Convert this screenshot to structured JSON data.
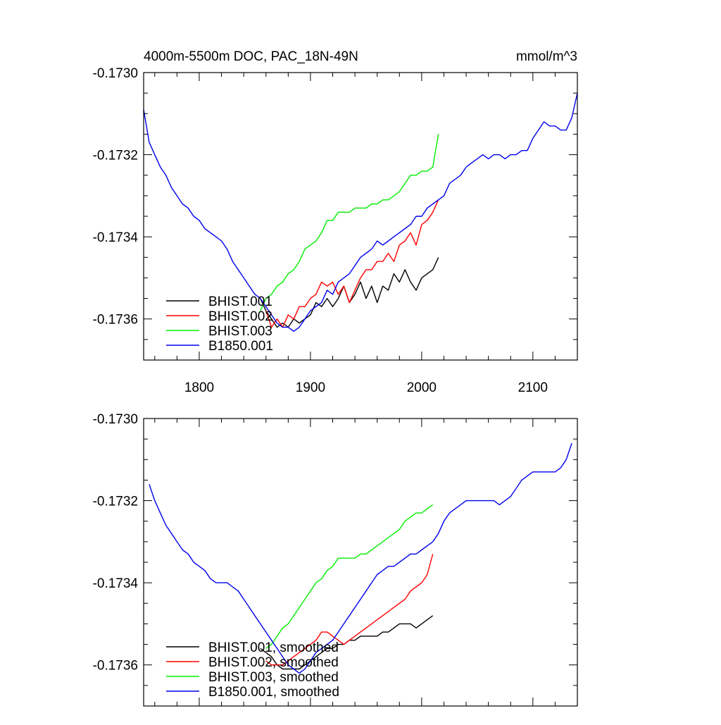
{
  "chart_data": [
    {
      "type": "line",
      "title": "4000m-5500m DOC, PAC_18N-49N",
      "units": "mmol/m^3",
      "xlim": [
        1750,
        2140
      ],
      "ylim": [
        -0.1737,
        -0.173
      ],
      "x_ticks": [
        1800,
        1900,
        2000,
        2100
      ],
      "x_tick_labels": [
        "1800",
        "1900",
        "2000",
        "2100"
      ],
      "y_ticks": [
        -0.173,
        -0.1732,
        -0.1734,
        -0.1736
      ],
      "y_tick_labels": [
        "-0.1730",
        "-0.1732",
        "-0.1734",
        "-0.1736"
      ],
      "legend_position": "bottom-left",
      "series": [
        {
          "name": "BHIST.001",
          "color": "#000000",
          "x": [
            1855,
            1860,
            1865,
            1870,
            1875,
            1880,
            1885,
            1890,
            1895,
            1900,
            1905,
            1910,
            1915,
            1920,
            1925,
            1930,
            1935,
            1940,
            1945,
            1950,
            1955,
            1960,
            1965,
            1970,
            1975,
            1980,
            1985,
            1990,
            1995,
            2000,
            2005,
            2010,
            2015
          ],
          "y": [
            -0.17355,
            -0.17358,
            -0.1736,
            -0.17362,
            -0.17361,
            -0.17362,
            -0.1736,
            -0.17361,
            -0.1736,
            -0.17359,
            -0.17356,
            -0.17357,
            -0.17355,
            -0.17357,
            -0.17355,
            -0.17352,
            -0.17356,
            -0.17354,
            -0.17351,
            -0.17355,
            -0.17352,
            -0.17356,
            -0.17352,
            -0.17353,
            -0.17349,
            -0.17351,
            -0.17348,
            -0.17351,
            -0.17353,
            -0.1735,
            -0.17349,
            -0.17348,
            -0.17345
          ]
        },
        {
          "name": "BHIST.002",
          "color": "#ff0000",
          "x": [
            1860,
            1865,
            1870,
            1875,
            1880,
            1885,
            1890,
            1895,
            1900,
            1905,
            1910,
            1915,
            1920,
            1925,
            1930,
            1935,
            1940,
            1945,
            1950,
            1955,
            1960,
            1965,
            1970,
            1975,
            1980,
            1985,
            1990,
            1995,
            2000,
            2005,
            2010,
            2015
          ],
          "y": [
            -0.17358,
            -0.17362,
            -0.1736,
            -0.17362,
            -0.17359,
            -0.1736,
            -0.17357,
            -0.17357,
            -0.17355,
            -0.17354,
            -0.17351,
            -0.17352,
            -0.17351,
            -0.17354,
            -0.17352,
            -0.17356,
            -0.17353,
            -0.1735,
            -0.17348,
            -0.17348,
            -0.17346,
            -0.17346,
            -0.17344,
            -0.17346,
            -0.17342,
            -0.17341,
            -0.17339,
            -0.17342,
            -0.17337,
            -0.17336,
            -0.17334,
            -0.17331
          ]
        },
        {
          "name": "BHIST.003",
          "color": "#00ee00",
          "x": [
            1855,
            1860,
            1865,
            1870,
            1875,
            1880,
            1885,
            1890,
            1895,
            1900,
            1905,
            1910,
            1915,
            1920,
            1925,
            1930,
            1935,
            1940,
            1945,
            1950,
            1955,
            1960,
            1965,
            1970,
            1975,
            1980,
            1985,
            1990,
            1995,
            2000,
            2005,
            2010,
            2015
          ],
          "y": [
            -0.17358,
            -0.17355,
            -0.17354,
            -0.17352,
            -0.17351,
            -0.17349,
            -0.17348,
            -0.17346,
            -0.17343,
            -0.17342,
            -0.17341,
            -0.17339,
            -0.17336,
            -0.17336,
            -0.17334,
            -0.17334,
            -0.17334,
            -0.17333,
            -0.17333,
            -0.17333,
            -0.17332,
            -0.17332,
            -0.17331,
            -0.17331,
            -0.1733,
            -0.17329,
            -0.17327,
            -0.17325,
            -0.17325,
            -0.17324,
            -0.17324,
            -0.17323,
            -0.17315
          ]
        },
        {
          "name": "B1850.001",
          "color": "#0000ee",
          "x": [
            1750,
            1755,
            1760,
            1765,
            1770,
            1775,
            1780,
            1785,
            1790,
            1795,
            1800,
            1805,
            1810,
            1815,
            1820,
            1825,
            1830,
            1835,
            1840,
            1845,
            1850,
            1855,
            1860,
            1865,
            1870,
            1875,
            1880,
            1885,
            1890,
            1895,
            1900,
            1905,
            1910,
            1915,
            1920,
            1925,
            1930,
            1935,
            1940,
            1945,
            1950,
            1955,
            1960,
            1965,
            1970,
            1975,
            1980,
            1985,
            1990,
            1995,
            2000,
            2005,
            2010,
            2015,
            2020,
            2025,
            2030,
            2035,
            2040,
            2045,
            2050,
            2055,
            2060,
            2065,
            2070,
            2075,
            2080,
            2085,
            2090,
            2095,
            2100,
            2105,
            2110,
            2115,
            2120,
            2125,
            2130,
            2135,
            2140
          ],
          "y": [
            -0.17309,
            -0.17317,
            -0.1732,
            -0.17323,
            -0.17325,
            -0.17328,
            -0.1733,
            -0.17332,
            -0.17333,
            -0.17335,
            -0.17336,
            -0.17338,
            -0.17339,
            -0.1734,
            -0.17341,
            -0.17343,
            -0.17346,
            -0.17348,
            -0.1735,
            -0.17352,
            -0.17354,
            -0.17355,
            -0.17357,
            -0.17359,
            -0.17361,
            -0.17362,
            -0.17362,
            -0.17363,
            -0.17362,
            -0.1736,
            -0.17358,
            -0.17357,
            -0.17356,
            -0.17353,
            -0.17354,
            -0.17351,
            -0.1735,
            -0.17349,
            -0.17347,
            -0.17345,
            -0.17344,
            -0.17343,
            -0.17341,
            -0.17342,
            -0.17341,
            -0.1734,
            -0.17339,
            -0.17338,
            -0.17337,
            -0.17335,
            -0.17335,
            -0.17333,
            -0.17332,
            -0.17331,
            -0.1733,
            -0.17327,
            -0.17326,
            -0.17325,
            -0.17323,
            -0.17322,
            -0.17321,
            -0.1732,
            -0.17321,
            -0.1732,
            -0.1732,
            -0.17321,
            -0.1732,
            -0.1732,
            -0.17319,
            -0.17319,
            -0.17316,
            -0.17314,
            -0.17312,
            -0.17313,
            -0.17313,
            -0.17314,
            -0.17314,
            -0.17311,
            -0.17305
          ]
        }
      ]
    },
    {
      "type": "line",
      "xlim": [
        1750,
        2140
      ],
      "ylim": [
        -0.1737,
        -0.173
      ],
      "x_ticks": [
        1800,
        1900,
        2000,
        2100
      ],
      "y_ticks": [
        -0.173,
        -0.1732,
        -0.1734,
        -0.1736
      ],
      "y_tick_labels": [
        "-0.1730",
        "-0.1732",
        "-0.1734",
        "-0.1736"
      ],
      "legend_position": "bottom-left",
      "series": [
        {
          "name": "BHIST.001, smoothed",
          "color": "#000000",
          "x": [
            1855,
            1860,
            1865,
            1870,
            1875,
            1880,
            1885,
            1890,
            1895,
            1900,
            1905,
            1910,
            1915,
            1920,
            1925,
            1930,
            1935,
            1940,
            1945,
            1950,
            1955,
            1960,
            1965,
            1970,
            1975,
            1980,
            1985,
            1990,
            1995,
            2000,
            2005,
            2010
          ],
          "y": [
            -0.17356,
            -0.17357,
            -0.17358,
            -0.1736,
            -0.17361,
            -0.17361,
            -0.17361,
            -0.17361,
            -0.1736,
            -0.17359,
            -0.17358,
            -0.17357,
            -0.17356,
            -0.17356,
            -0.17355,
            -0.17355,
            -0.17354,
            -0.17354,
            -0.17353,
            -0.17353,
            -0.17353,
            -0.17353,
            -0.17352,
            -0.17352,
            -0.17351,
            -0.1735,
            -0.1735,
            -0.1735,
            -0.17351,
            -0.1735,
            -0.17349,
            -0.17348
          ]
        },
        {
          "name": "BHIST.002, smoothed",
          "color": "#ff0000",
          "x": [
            1860,
            1865,
            1870,
            1875,
            1880,
            1885,
            1890,
            1895,
            1900,
            1905,
            1910,
            1915,
            1920,
            1925,
            1930,
            1935,
            1940,
            1945,
            1950,
            1955,
            1960,
            1965,
            1970,
            1975,
            1980,
            1985,
            1990,
            1995,
            2000,
            2005,
            2010
          ],
          "y": [
            -0.17359,
            -0.1736,
            -0.1736,
            -0.1736,
            -0.17359,
            -0.17358,
            -0.17357,
            -0.17356,
            -0.17355,
            -0.17354,
            -0.17352,
            -0.17352,
            -0.17353,
            -0.17354,
            -0.17355,
            -0.17354,
            -0.17353,
            -0.17352,
            -0.17351,
            -0.1735,
            -0.17349,
            -0.17348,
            -0.17347,
            -0.17346,
            -0.17345,
            -0.17344,
            -0.17342,
            -0.17341,
            -0.1734,
            -0.17338,
            -0.17333
          ]
        },
        {
          "name": "BHIST.003, smoothed",
          "color": "#00ee00",
          "x": [
            1860,
            1865,
            1870,
            1875,
            1880,
            1885,
            1890,
            1895,
            1900,
            1905,
            1910,
            1915,
            1920,
            1925,
            1930,
            1935,
            1940,
            1945,
            1950,
            1955,
            1960,
            1965,
            1970,
            1975,
            1980,
            1985,
            1990,
            1995,
            2000,
            2005,
            2010
          ],
          "y": [
            -0.17356,
            -0.17355,
            -0.17353,
            -0.17351,
            -0.1735,
            -0.17348,
            -0.17346,
            -0.17344,
            -0.17342,
            -0.1734,
            -0.17339,
            -0.17337,
            -0.17336,
            -0.17334,
            -0.17334,
            -0.17334,
            -0.17334,
            -0.17333,
            -0.17333,
            -0.17332,
            -0.17331,
            -0.1733,
            -0.17329,
            -0.17328,
            -0.17327,
            -0.17325,
            -0.17324,
            -0.17323,
            -0.17323,
            -0.17322,
            -0.17321
          ]
        },
        {
          "name": "B1850.001, smoothed",
          "color": "#0000ee",
          "x": [
            1755,
            1760,
            1765,
            1770,
            1775,
            1780,
            1785,
            1790,
            1795,
            1800,
            1805,
            1810,
            1815,
            1820,
            1825,
            1830,
            1835,
            1840,
            1845,
            1850,
            1855,
            1860,
            1865,
            1870,
            1875,
            1880,
            1885,
            1890,
            1895,
            1900,
            1905,
            1910,
            1915,
            1920,
            1925,
            1930,
            1935,
            1940,
            1945,
            1950,
            1955,
            1960,
            1965,
            1970,
            1975,
            1980,
            1985,
            1990,
            1995,
            2000,
            2005,
            2010,
            2015,
            2020,
            2025,
            2030,
            2035,
            2040,
            2045,
            2050,
            2055,
            2060,
            2065,
            2070,
            2075,
            2080,
            2085,
            2090,
            2095,
            2100,
            2105,
            2110,
            2115,
            2120,
            2125,
            2130,
            2135
          ],
          "y": [
            -0.17316,
            -0.1732,
            -0.17323,
            -0.17326,
            -0.17328,
            -0.1733,
            -0.17332,
            -0.17333,
            -0.17335,
            -0.17336,
            -0.17337,
            -0.17339,
            -0.1734,
            -0.1734,
            -0.1734,
            -0.17341,
            -0.17342,
            -0.17344,
            -0.17346,
            -0.17348,
            -0.1735,
            -0.17352,
            -0.17354,
            -0.17356,
            -0.17358,
            -0.1736,
            -0.17361,
            -0.17362,
            -0.17361,
            -0.17359,
            -0.17357,
            -0.17356,
            -0.17355,
            -0.17354,
            -0.17352,
            -0.1735,
            -0.17348,
            -0.17346,
            -0.17344,
            -0.17342,
            -0.1734,
            -0.17338,
            -0.17337,
            -0.17336,
            -0.17336,
            -0.17335,
            -0.17334,
            -0.17333,
            -0.17333,
            -0.17332,
            -0.17331,
            -0.1733,
            -0.17328,
            -0.17325,
            -0.17323,
            -0.17322,
            -0.17321,
            -0.1732,
            -0.1732,
            -0.1732,
            -0.1732,
            -0.1732,
            -0.1732,
            -0.17321,
            -0.1732,
            -0.17319,
            -0.17317,
            -0.17315,
            -0.17314,
            -0.17313,
            -0.17313,
            -0.17313,
            -0.17313,
            -0.17313,
            -0.17312,
            -0.1731,
            -0.17306
          ]
        }
      ]
    }
  ]
}
